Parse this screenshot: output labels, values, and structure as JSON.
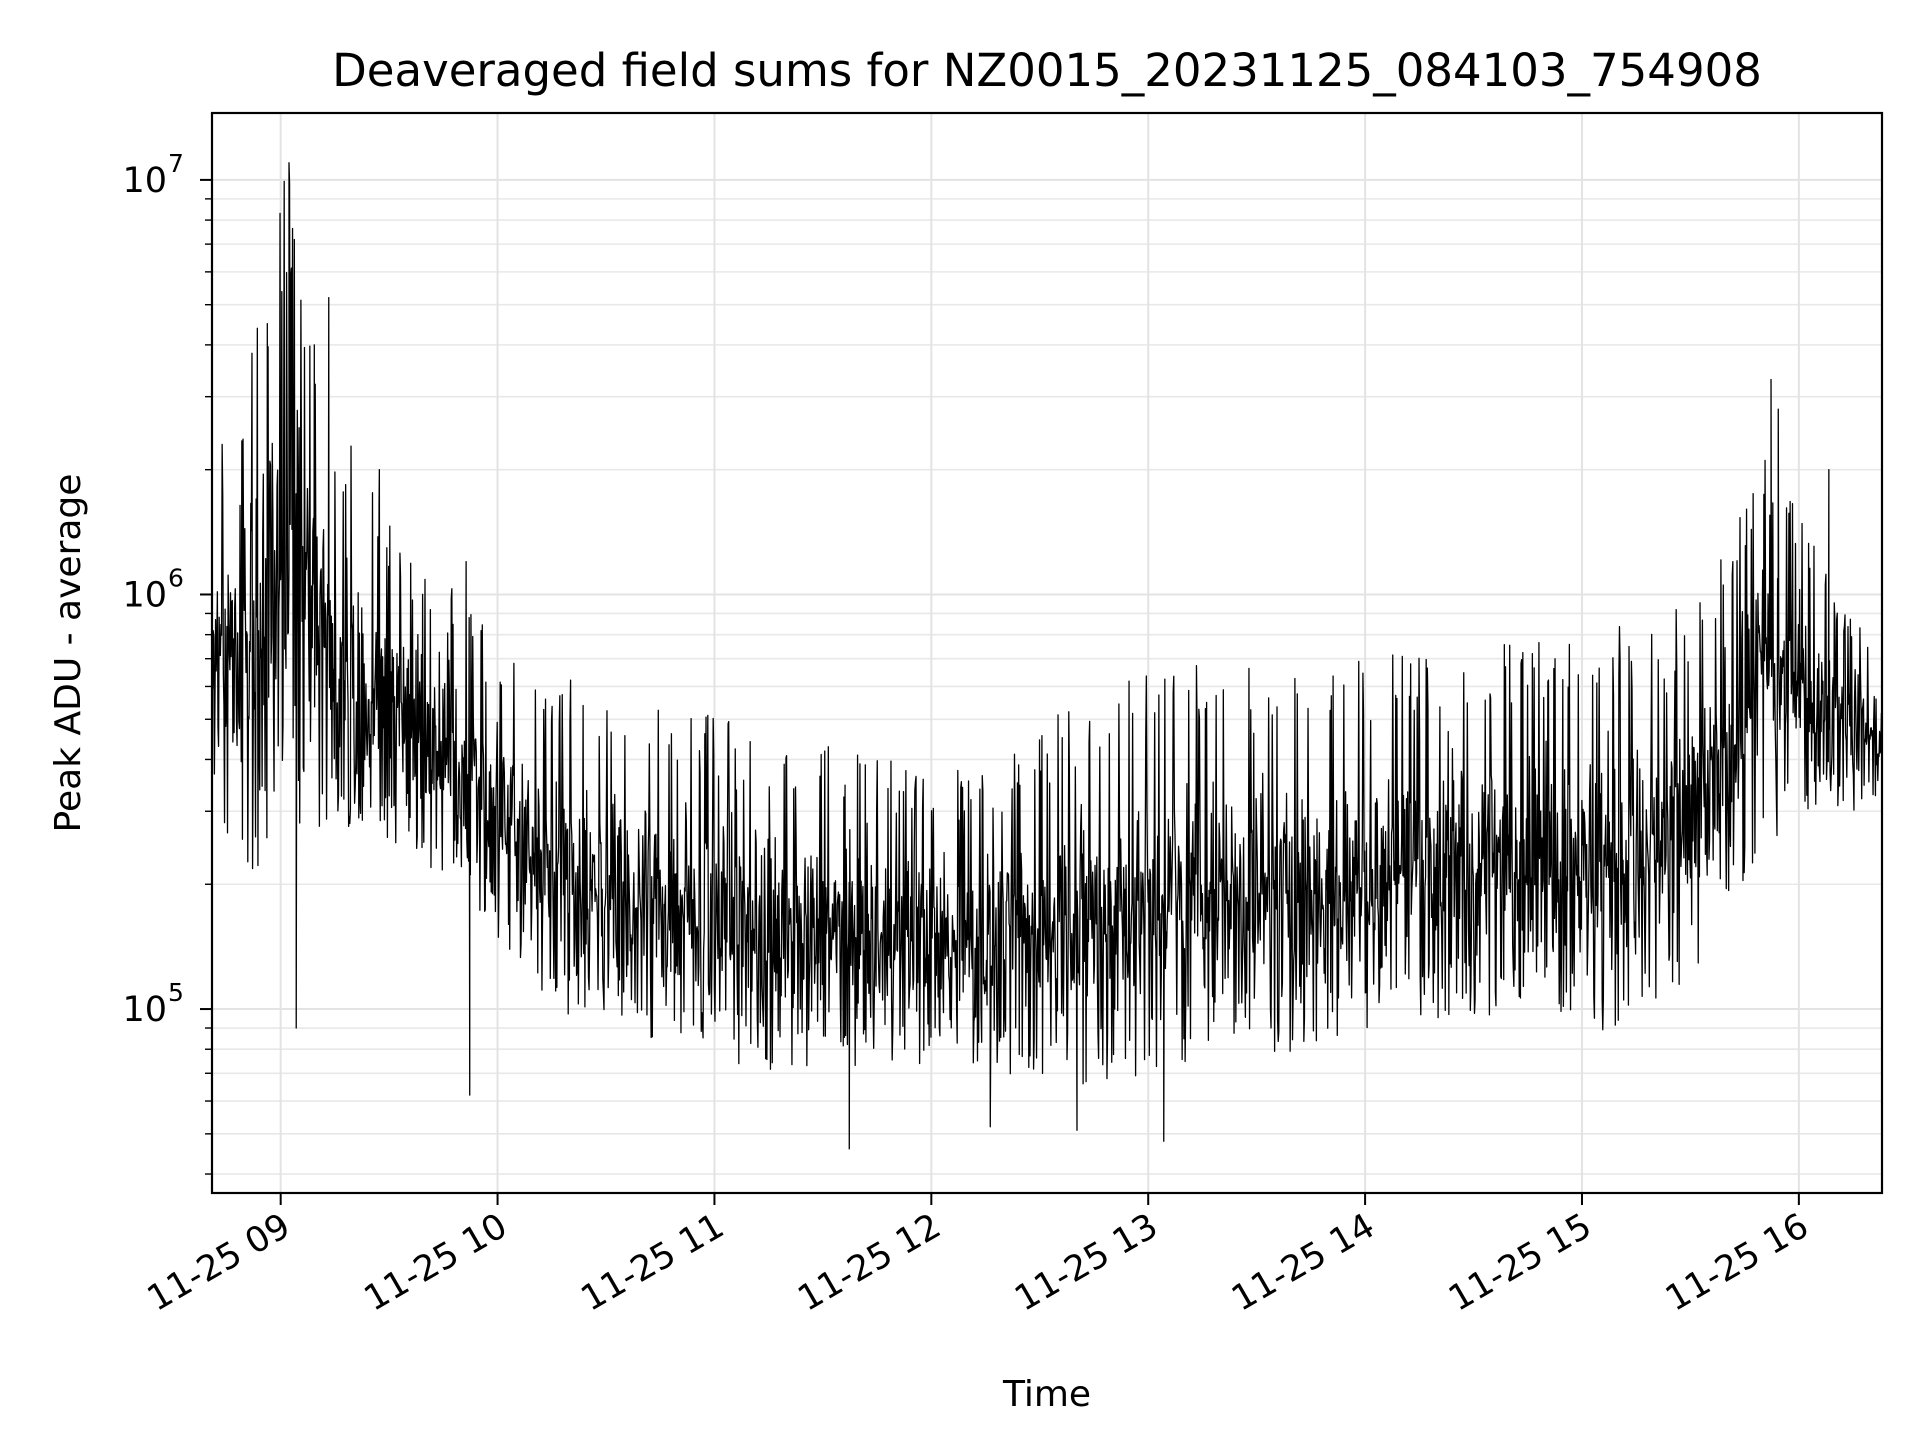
{
  "chart_data": {
    "type": "line",
    "title": "Deaveraged field sums for NZ0015_20231125_084103_754908",
    "xlabel": "Time",
    "ylabel": "Peak ADU - average",
    "yscale": "log",
    "ylim": [
      36000,
      14500000
    ],
    "xlim": [
      "2023-11-25 08:41",
      "2023-11-25 16:23"
    ],
    "grid": true,
    "x_ticks": [
      {
        "label": "11-25 09",
        "time": "2023-11-25 09:00"
      },
      {
        "label": "11-25 10",
        "time": "2023-11-25 10:00"
      },
      {
        "label": "11-25 11",
        "time": "2023-11-25 11:00"
      },
      {
        "label": "11-25 12",
        "time": "2023-11-25 12:00"
      },
      {
        "label": "11-25 13",
        "time": "2023-11-25 13:00"
      },
      {
        "label": "11-25 14",
        "time": "2023-11-25 14:00"
      },
      {
        "label": "11-25 15",
        "time": "2023-11-25 15:00"
      },
      {
        "label": "11-25 16",
        "time": "2023-11-25 16:00"
      }
    ],
    "y_ticks": [
      {
        "base": "10",
        "exp": "5",
        "value": 100000
      },
      {
        "base": "10",
        "exp": "6",
        "value": 1000000
      },
      {
        "base": "10",
        "exp": "7",
        "value": 10000000
      }
    ],
    "series": [
      {
        "color": "#000000",
        "envelope": [
          {
            "time": "2023-11-25 08:41",
            "low": 300000,
            "high": 1900000
          },
          {
            "time": "2023-11-25 08:50",
            "low": 200000,
            "high": 4000000
          },
          {
            "time": "2023-11-25 09:02",
            "low": 250000,
            "high": 11000000
          },
          {
            "time": "2023-11-25 09:15",
            "low": 250000,
            "high": 3000000
          },
          {
            "time": "2023-11-25 09:30",
            "low": 250000,
            "high": 1500000
          },
          {
            "time": "2023-11-25 09:50",
            "low": 180000,
            "high": 1000000
          },
          {
            "time": "2023-11-25 10:15",
            "low": 100000,
            "high": 650000
          },
          {
            "time": "2023-11-25 10:45",
            "low": 80000,
            "high": 550000
          },
          {
            "time": "2023-11-25 11:15",
            "low": 70000,
            "high": 480000
          },
          {
            "time": "2023-11-25 11:45",
            "low": 70000,
            "high": 400000
          },
          {
            "time": "2023-11-25 12:15",
            "low": 70000,
            "high": 380000
          },
          {
            "time": "2023-11-25 12:45",
            "low": 65000,
            "high": 600000
          },
          {
            "time": "2023-11-25 13:15",
            "low": 75000,
            "high": 700000
          },
          {
            "time": "2023-11-25 13:45",
            "low": 80000,
            "high": 650000
          },
          {
            "time": "2023-11-25 14:15",
            "low": 95000,
            "high": 750000
          },
          {
            "time": "2023-11-25 14:45",
            "low": 95000,
            "high": 800000
          },
          {
            "time": "2023-11-25 15:15",
            "low": 85000,
            "high": 850000
          },
          {
            "time": "2023-11-25 15:35",
            "low": 130000,
            "high": 1000000
          },
          {
            "time": "2023-11-25 15:50",
            "low": 250000,
            "high": 2500000
          },
          {
            "time": "2023-11-25 16:00",
            "low": 280000,
            "high": 1600000
          },
          {
            "time": "2023-11-25 16:15",
            "low": 300000,
            "high": 900000
          },
          {
            "time": "2023-11-25 16:23",
            "low": 320000,
            "high": 700000
          }
        ],
        "spikes": [
          {
            "time": "2023-11-25 09:02",
            "value": 11000000
          },
          {
            "time": "2023-11-25 08:56",
            "value": 4500000
          },
          {
            "time": "2023-11-25 09:09",
            "value": 4000000
          },
          {
            "time": "2023-11-25 09:13",
            "value": 5200000
          },
          {
            "time": "2023-11-25 09:27",
            "value": 2000000
          },
          {
            "time": "2023-11-25 09:51",
            "value": 1200000
          },
          {
            "time": "2023-11-25 15:52",
            "value": 3300000
          },
          {
            "time": "2023-11-25 15:54",
            "value": 2800000
          },
          {
            "time": "2023-11-25 16:08",
            "value": 2000000
          },
          {
            "time": "2023-11-25 09:04",
            "value": 90000
          },
          {
            "time": "2023-11-25 09:52",
            "value": 62000
          },
          {
            "time": "2023-11-25 11:37",
            "value": 46000
          },
          {
            "time": "2023-11-25 12:16",
            "value": 52000
          },
          {
            "time": "2023-11-25 13:04",
            "value": 48000
          },
          {
            "time": "2023-11-25 12:40",
            "value": 51000
          }
        ]
      }
    ]
  }
}
